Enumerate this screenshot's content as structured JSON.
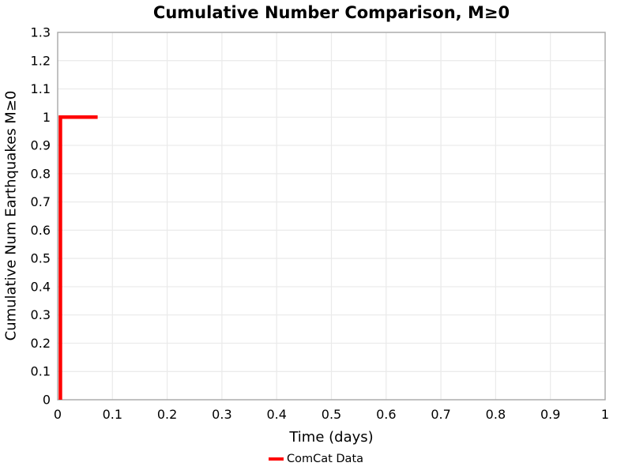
{
  "chart_data": {
    "type": "line",
    "subtype": "step",
    "title": "Cumulative Number Comparison, M≥0",
    "xlabel": "Time (days)",
    "ylabel": "Cumulative Num Earthquakes M≥0",
    "xlim": [
      0,
      1
    ],
    "ylim": [
      0,
      1.3
    ],
    "grid": true,
    "legend_position": "bottom-center",
    "x_ticks": [
      {
        "v": 0,
        "label": "0"
      },
      {
        "v": 0.1,
        "label": "0.1"
      },
      {
        "v": 0.2,
        "label": "0.2"
      },
      {
        "v": 0.3,
        "label": "0.3"
      },
      {
        "v": 0.4,
        "label": "0.4"
      },
      {
        "v": 0.5,
        "label": "0.5"
      },
      {
        "v": 0.6,
        "label": "0.6"
      },
      {
        "v": 0.7,
        "label": "0.7"
      },
      {
        "v": 0.8,
        "label": "0.8"
      },
      {
        "v": 0.9,
        "label": "0.9"
      },
      {
        "v": 1,
        "label": "1"
      }
    ],
    "y_ticks": [
      {
        "v": 0,
        "label": "0"
      },
      {
        "v": 0.1,
        "label": "0.1"
      },
      {
        "v": 0.2,
        "label": "0.2"
      },
      {
        "v": 0.3,
        "label": "0.3"
      },
      {
        "v": 0.4,
        "label": "0.4"
      },
      {
        "v": 0.5,
        "label": "0.5"
      },
      {
        "v": 0.6,
        "label": "0.6"
      },
      {
        "v": 0.7,
        "label": "0.7"
      },
      {
        "v": 0.8,
        "label": "0.8"
      },
      {
        "v": 0.9,
        "label": "0.9"
      },
      {
        "v": 1,
        "label": "1"
      },
      {
        "v": 1.1,
        "label": "1.1"
      },
      {
        "v": 1.2,
        "label": "1.2"
      },
      {
        "v": 1.3,
        "label": "1.3"
      }
    ],
    "series": [
      {
        "name": "ComCat Data",
        "color": "#ff0000",
        "line_width": 4.5,
        "points": [
          [
            0.005,
            0
          ],
          [
            0.005,
            1
          ],
          [
            0.073,
            1
          ]
        ]
      }
    ],
    "legend": {
      "entries": [
        {
          "label": "ComCat Data",
          "color": "#ff0000"
        }
      ]
    },
    "colors": {
      "grid": "#eaeaea",
      "border": "#a9a9a9",
      "text": "#000000",
      "background": "#ffffff"
    }
  }
}
